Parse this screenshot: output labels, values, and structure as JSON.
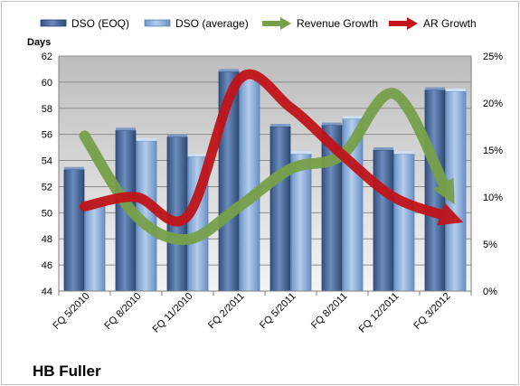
{
  "chart_data": {
    "type": "bar",
    "title": "HB Fuller",
    "ylabel": "Days",
    "y2label": "",
    "categories": [
      "FQ 5/2010",
      "FQ 8/2010",
      "FQ 11/2010",
      "FQ 2/2011",
      "FQ 5/2011",
      "FQ 8/2011",
      "FQ 12/2011",
      "FQ 3/2012"
    ],
    "ylim": [
      44,
      62
    ],
    "yticks": [
      44,
      46,
      48,
      50,
      52,
      54,
      56,
      58,
      60,
      62
    ],
    "y2lim": [
      0,
      0.25
    ],
    "y2ticks": [
      "0%",
      "5%",
      "10%",
      "15%",
      "20%",
      "25%"
    ],
    "grid": true,
    "legend_position": "top",
    "series": [
      {
        "name": "DSO (EOQ)",
        "type": "bar",
        "axis": "left",
        "color": "#4f6f9f",
        "values": [
          53.3,
          56.3,
          55.8,
          60.8,
          56.6,
          56.7,
          54.8,
          59.4
        ]
      },
      {
        "name": "DSO (average)",
        "type": "bar",
        "axis": "left",
        "color": "#8db3e2",
        "values": [
          50.8,
          55.5,
          54.3,
          60.1,
          54.5,
          57.2,
          54.5,
          59.3
        ]
      },
      {
        "name": "Revenue Growth",
        "type": "line",
        "axis": "right",
        "color": "#77a04a",
        "values": [
          0.165,
          0.08,
          0.055,
          0.09,
          0.13,
          0.145,
          0.21,
          0.11
        ]
      },
      {
        "name": "AR Growth",
        "type": "line",
        "axis": "right",
        "color": "#c0141a",
        "values": [
          0.09,
          0.1,
          0.08,
          0.225,
          0.195,
          0.145,
          0.1,
          0.08
        ]
      }
    ]
  }
}
